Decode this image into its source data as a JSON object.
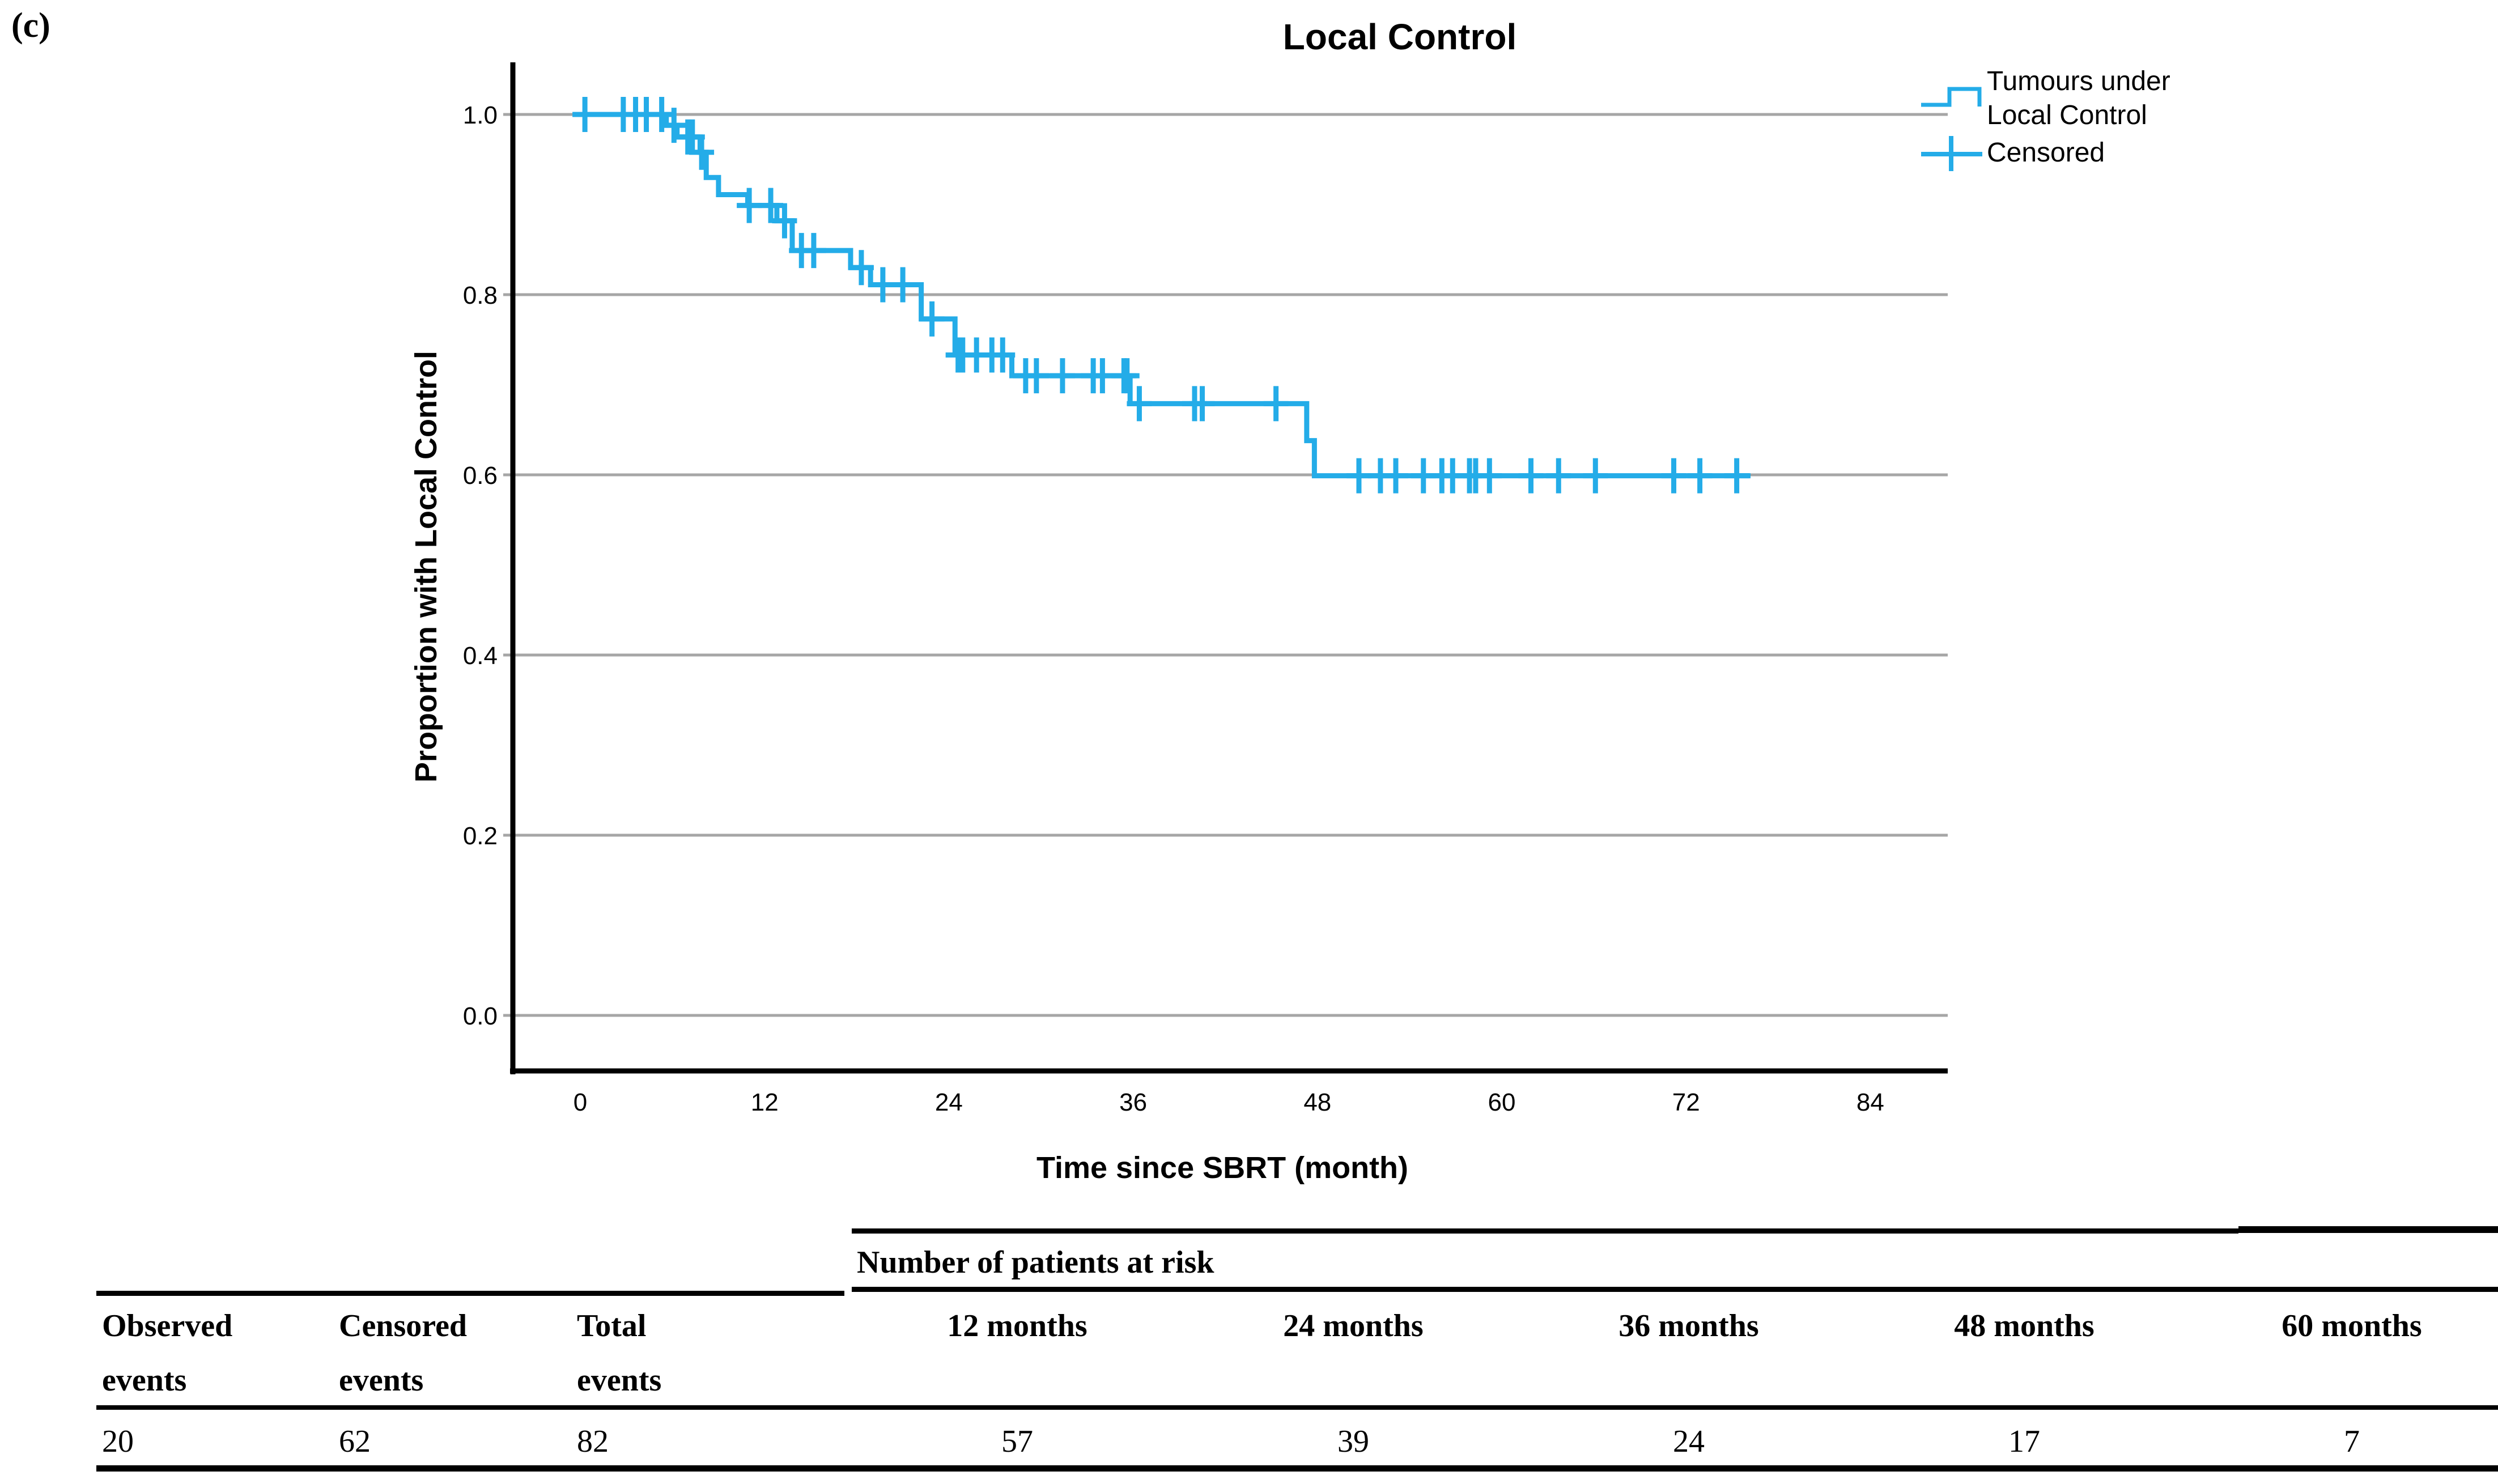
{
  "panel_label": "(c)",
  "chart": {
    "title": "Local Control",
    "x_label": "Time since SBRT (month)",
    "y_label": "Proportion with Local Control",
    "legend": {
      "series_line1": "Tumours under",
      "series_line2": "Local Control",
      "censored_label": "Censored"
    }
  },
  "chart_data": {
    "type": "line",
    "subtype": "kaplan-meier-step",
    "title": "Local Control",
    "xlabel": "Time since SBRT (month)",
    "ylabel": "Proportion with Local Control",
    "xlim": [
      -4,
      88
    ],
    "ylim": [
      -0.06,
      1.06
    ],
    "x_ticks": [
      {
        "label": "0",
        "v": 0
      },
      {
        "label": "12",
        "v": 12
      },
      {
        "label": "24",
        "v": 24
      },
      {
        "label": "36",
        "v": 36
      },
      {
        "label": "48",
        "v": 48
      },
      {
        "label": "60",
        "v": 60
      },
      {
        "label": "72",
        "v": 72
      },
      {
        "label": "84",
        "v": 84
      }
    ],
    "y_ticks": [
      {
        "label": "0.0",
        "v": 0.0
      },
      {
        "label": "0.2",
        "v": 0.2
      },
      {
        "label": "0.4",
        "v": 0.4
      },
      {
        "label": "0.6",
        "v": 0.6
      },
      {
        "label": "0.8",
        "v": 0.8
      },
      {
        "label": "1.0",
        "v": 1.0
      }
    ],
    "grid": "horizontal",
    "grid_color": "#a6a6a6",
    "line_color": "#24ace8",
    "legend_position": "top-right",
    "series": [
      {
        "name": "Tumours under Local Control",
        "steps": [
          [
            0.0,
            1.0
          ],
          [
            5.6,
            0.988
          ],
          [
            6.3,
            0.975
          ],
          [
            7.8,
            0.958
          ],
          [
            8.2,
            0.93
          ],
          [
            9.0,
            0.911
          ],
          [
            10.9,
            0.899
          ],
          [
            12.8,
            0.882
          ],
          [
            13.8,
            0.849
          ],
          [
            17.6,
            0.83
          ],
          [
            18.9,
            0.811
          ],
          [
            22.2,
            0.773
          ],
          [
            24.4,
            0.733
          ],
          [
            28.1,
            0.71
          ],
          [
            35.8,
            0.679
          ],
          [
            47.3,
            0.638
          ],
          [
            47.8,
            0.599
          ],
          [
            76.2,
            0.599
          ]
        ],
        "censored_marks": [
          [
            0.3,
            1.0
          ],
          [
            2.8,
            1.0
          ],
          [
            3.6,
            1.0
          ],
          [
            4.3,
            1.0
          ],
          [
            5.3,
            1.0
          ],
          [
            6.1,
            0.988
          ],
          [
            7.0,
            0.975
          ],
          [
            7.3,
            0.975
          ],
          [
            7.9,
            0.958
          ],
          [
            11.0,
            0.899
          ],
          [
            12.4,
            0.899
          ],
          [
            13.3,
            0.882
          ],
          [
            14.4,
            0.849
          ],
          [
            15.2,
            0.849
          ],
          [
            18.3,
            0.83
          ],
          [
            19.7,
            0.811
          ],
          [
            21.0,
            0.811
          ],
          [
            22.9,
            0.773
          ],
          [
            24.6,
            0.733
          ],
          [
            24.9,
            0.733
          ],
          [
            25.8,
            0.733
          ],
          [
            26.8,
            0.733
          ],
          [
            27.5,
            0.733
          ],
          [
            29.0,
            0.71
          ],
          [
            29.7,
            0.71
          ],
          [
            31.4,
            0.71
          ],
          [
            33.4,
            0.71
          ],
          [
            34.0,
            0.71
          ],
          [
            35.4,
            0.71
          ],
          [
            35.6,
            0.71
          ],
          [
            36.4,
            0.679
          ],
          [
            40.0,
            0.679
          ],
          [
            40.5,
            0.679
          ],
          [
            45.3,
            0.679
          ],
          [
            50.7,
            0.599
          ],
          [
            52.1,
            0.599
          ],
          [
            53.1,
            0.599
          ],
          [
            54.9,
            0.599
          ],
          [
            56.1,
            0.599
          ],
          [
            56.8,
            0.599
          ],
          [
            57.9,
            0.599
          ],
          [
            58.3,
            0.599
          ],
          [
            59.2,
            0.599
          ],
          [
            61.9,
            0.599
          ],
          [
            63.7,
            0.599
          ],
          [
            66.1,
            0.599
          ],
          [
            71.2,
            0.599
          ],
          [
            72.9,
            0.599
          ],
          [
            75.3,
            0.599
          ]
        ]
      }
    ]
  },
  "table": {
    "risk_title": "Number of patients at risk",
    "left_columns": [
      {
        "header_line1": "Observed",
        "header_line2": "events",
        "value": "20"
      },
      {
        "header_line1": "Censored",
        "header_line2": "events",
        "value": "62"
      },
      {
        "header_line1": "Total",
        "header_line2": "events",
        "value": "82"
      }
    ],
    "risk_columns": [
      {
        "header": "12 months",
        "value": "57"
      },
      {
        "header": "24 months",
        "value": "39"
      },
      {
        "header": "36 months",
        "value": "24"
      },
      {
        "header": "48 months",
        "value": "17"
      },
      {
        "header": "60 months",
        "value": "7"
      }
    ]
  }
}
